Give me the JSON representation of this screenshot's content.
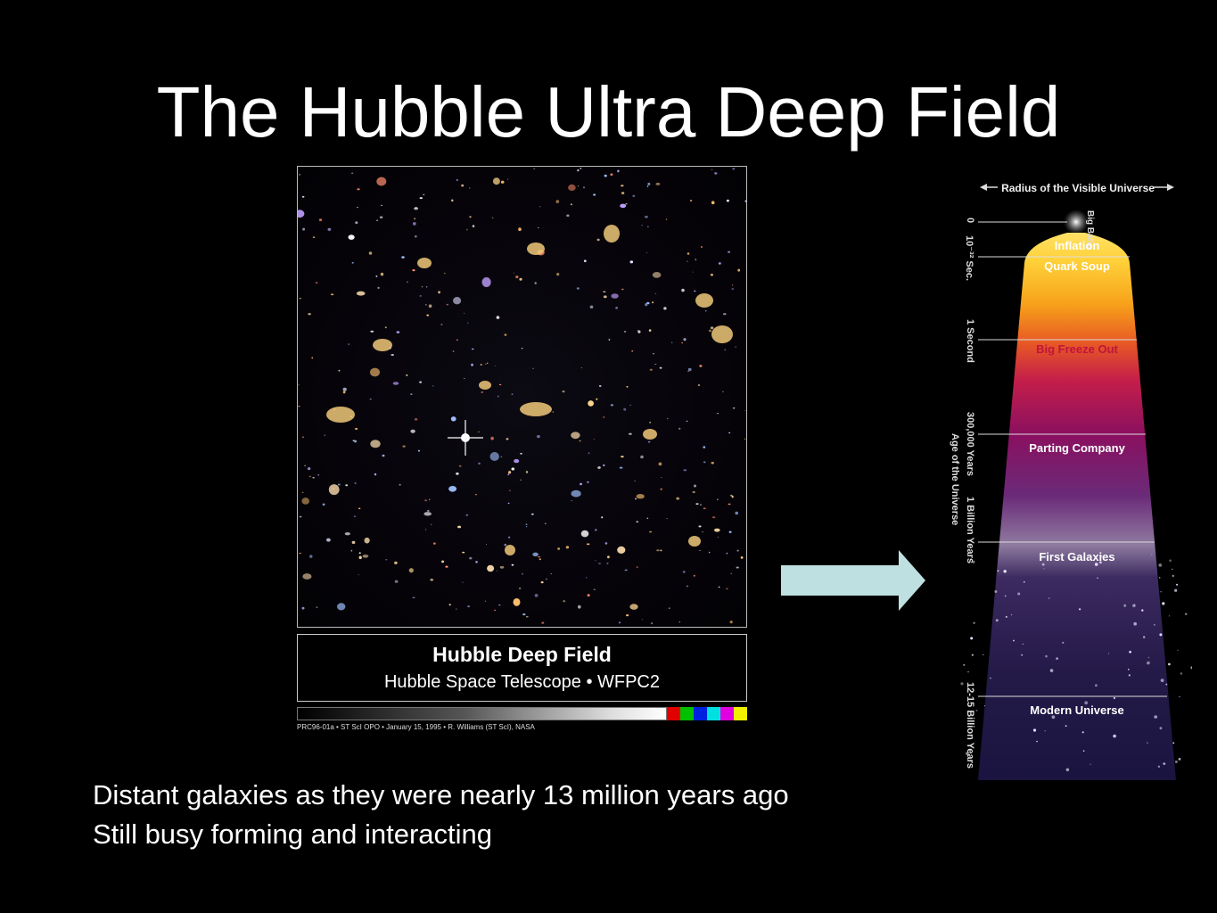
{
  "slide": {
    "title": "The Hubble Ultra Deep Field",
    "lines": [
      "Distant galaxies as they were nearly 13 million years ago",
      "Still busy forming and interacting"
    ]
  },
  "hubble_image": {
    "caption_title": "Hubble Deep Field",
    "caption_subtitle": "Hubble Space Telescope • WFPC2",
    "credit": "PRC96-01a • ST ScI OPO • January 15, 1995 • R. Williams (ST ScI), NASA",
    "swatch_colors": [
      "#e00000",
      "#00c000",
      "#0020e0",
      "#00e0e0",
      "#e000e0",
      "#f0f000"
    ]
  },
  "arrow": {
    "color": "#bfe0e0",
    "icon": "right-arrow-icon"
  },
  "timeline": {
    "header": "Radius of the Visible Universe",
    "big_bang": "Big Bang",
    "time_labels": [
      "0",
      "10⁻³² Sec.",
      "1 Second",
      "300,000 Years",
      "1 Billion Years",
      "12-15 Billion Years"
    ],
    "axis_title": "Age of the Universe",
    "eras": [
      "Inflation",
      "Quark Soup",
      "Big Freeze Out",
      "Parting Company",
      "First Galaxies",
      "Modern Universe"
    ]
  }
}
